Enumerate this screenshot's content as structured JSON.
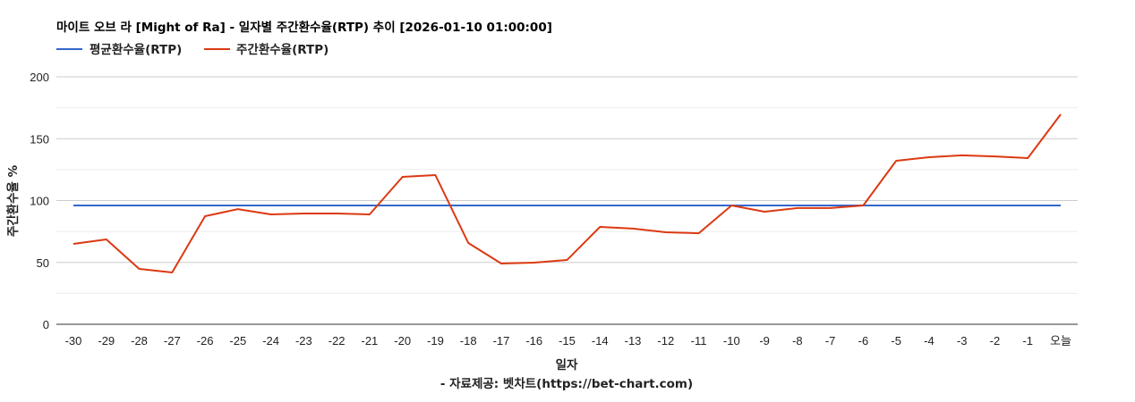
{
  "chart_data": {
    "type": "line",
    "title": "마이트 오브 라 [Might of Ra] - 일자별 주간환수율(RTP) 추이 [2026-01-10 01:00:00]",
    "xlabel": "일자",
    "ylabel": "주간환수율 %",
    "source": "- 자료제공: 벳차트(https://bet-chart.com)",
    "ylim": [
      0,
      200
    ],
    "yticks": [
      0,
      50,
      100,
      150,
      200
    ],
    "grid": true,
    "legend_position": "top-left",
    "categories": [
      "-30",
      "-29",
      "-28",
      "-27",
      "-26",
      "-25",
      "-24",
      "-23",
      "-22",
      "-21",
      "-20",
      "-19",
      "-18",
      "-17",
      "-16",
      "-15",
      "-14",
      "-13",
      "-12",
      "-11",
      "-10",
      "-9",
      "-8",
      "-7",
      "-6",
      "-5",
      "-4",
      "-3",
      "-2",
      "-1",
      "오늘"
    ],
    "series": [
      {
        "name": "평균환수율(RTP)",
        "color": "#3366cc",
        "values": [
          96,
          96,
          96,
          96,
          96,
          96,
          96,
          96,
          96,
          96,
          96,
          96,
          96,
          96,
          96,
          96,
          96,
          96,
          96,
          96,
          96,
          96,
          96,
          96,
          96,
          96,
          96,
          96,
          96,
          96,
          96
        ]
      },
      {
        "name": "주간환수율(RTP)",
        "color": "#dc3912",
        "values": [
          65.0,
          68.6,
          44.8,
          41.9,
          87.4,
          93.1,
          88.8,
          89.5,
          89.5,
          88.8,
          119.1,
          120.6,
          65.7,
          49.1,
          49.8,
          52.0,
          78.7,
          77.3,
          74.4,
          73.6,
          96.0,
          91.0,
          93.9,
          93.9,
          96.0,
          132.1,
          135.0,
          136.5,
          135.7,
          134.3,
          169.7
        ]
      }
    ]
  }
}
